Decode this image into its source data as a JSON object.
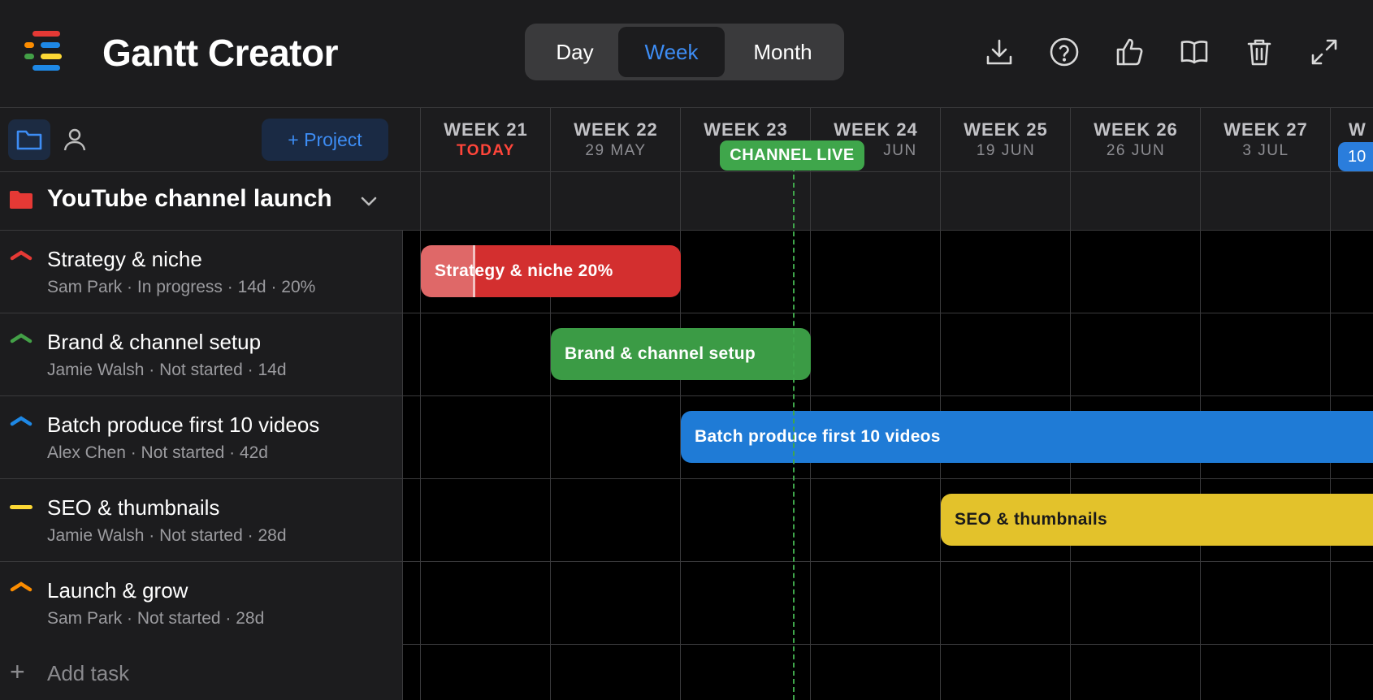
{
  "app": {
    "title": "Gantt Creator"
  },
  "view_switch": {
    "options": [
      "Day",
      "Week",
      "Month"
    ],
    "selected": "Week"
  },
  "toolbar": {
    "icons": [
      "download-icon",
      "help-icon",
      "thumbs-up-icon",
      "book-icon",
      "trash-icon",
      "expand-icon"
    ]
  },
  "sidebar": {
    "tabs": [
      "folder-icon",
      "person-icon"
    ],
    "add_project_label": "+ Project",
    "project": {
      "name": "YouTube channel launch",
      "color": "#e53935"
    },
    "tasks": [
      {
        "name": "Strategy & niche",
        "meta": "Sam Park · In progress · 14d · 20%",
        "color": "#e53935",
        "priority_icon": "chevron-up-icon"
      },
      {
        "name": "Brand & channel setup",
        "meta": "Jamie Walsh · Not started · 14d",
        "color": "#43a047",
        "priority_icon": "chevron-up-icon"
      },
      {
        "name": "Batch produce first 10 videos",
        "meta": "Alex Chen · Not started · 42d",
        "color": "#1e88e5",
        "priority_icon": "chevron-up-icon"
      },
      {
        "name": "SEO & thumbnails",
        "meta": "Jamie Walsh · Not started · 28d",
        "color": "#fdd835",
        "priority_icon": "dash-icon"
      },
      {
        "name": "Launch & grow",
        "meta": "Sam Park · Not started · 28d",
        "color": "#fb8c00",
        "priority_icon": "chevron-up-icon"
      }
    ],
    "add_task_label": "Add task"
  },
  "timeline": {
    "weeks": [
      {
        "label": "WEEK 21",
        "date": "TODAY",
        "is_today": true
      },
      {
        "label": "WEEK 22",
        "date": "29 MAY"
      },
      {
        "label": "WEEK 23",
        "date": ""
      },
      {
        "label": "WEEK 24",
        "date": "JUN"
      },
      {
        "label": "WEEK 25",
        "date": "19 JUN"
      },
      {
        "label": "WEEK 26",
        "date": "26 JUN"
      },
      {
        "label": "WEEK 27",
        "date": "3 JUL"
      },
      {
        "label": "W",
        "date": ""
      }
    ],
    "next_pill": "10",
    "milestone": {
      "label": "CHANNEL LIVE",
      "color": "#3fa64b"
    },
    "bars": [
      {
        "label": "Strategy & niche 20%",
        "color": "#d32f2f",
        "text_color": "#ffffff",
        "progress": 0.2
      },
      {
        "label": "Brand & channel setup",
        "color": "#3b9b45",
        "text_color": "#ffffff"
      },
      {
        "label": "Batch produce first 10 videos",
        "color": "#1f7bd6",
        "text_color": "#ffffff"
      },
      {
        "label": "SEO & thumbnails",
        "color": "#e3c22b",
        "text_color": "#1a1a1a"
      }
    ]
  }
}
